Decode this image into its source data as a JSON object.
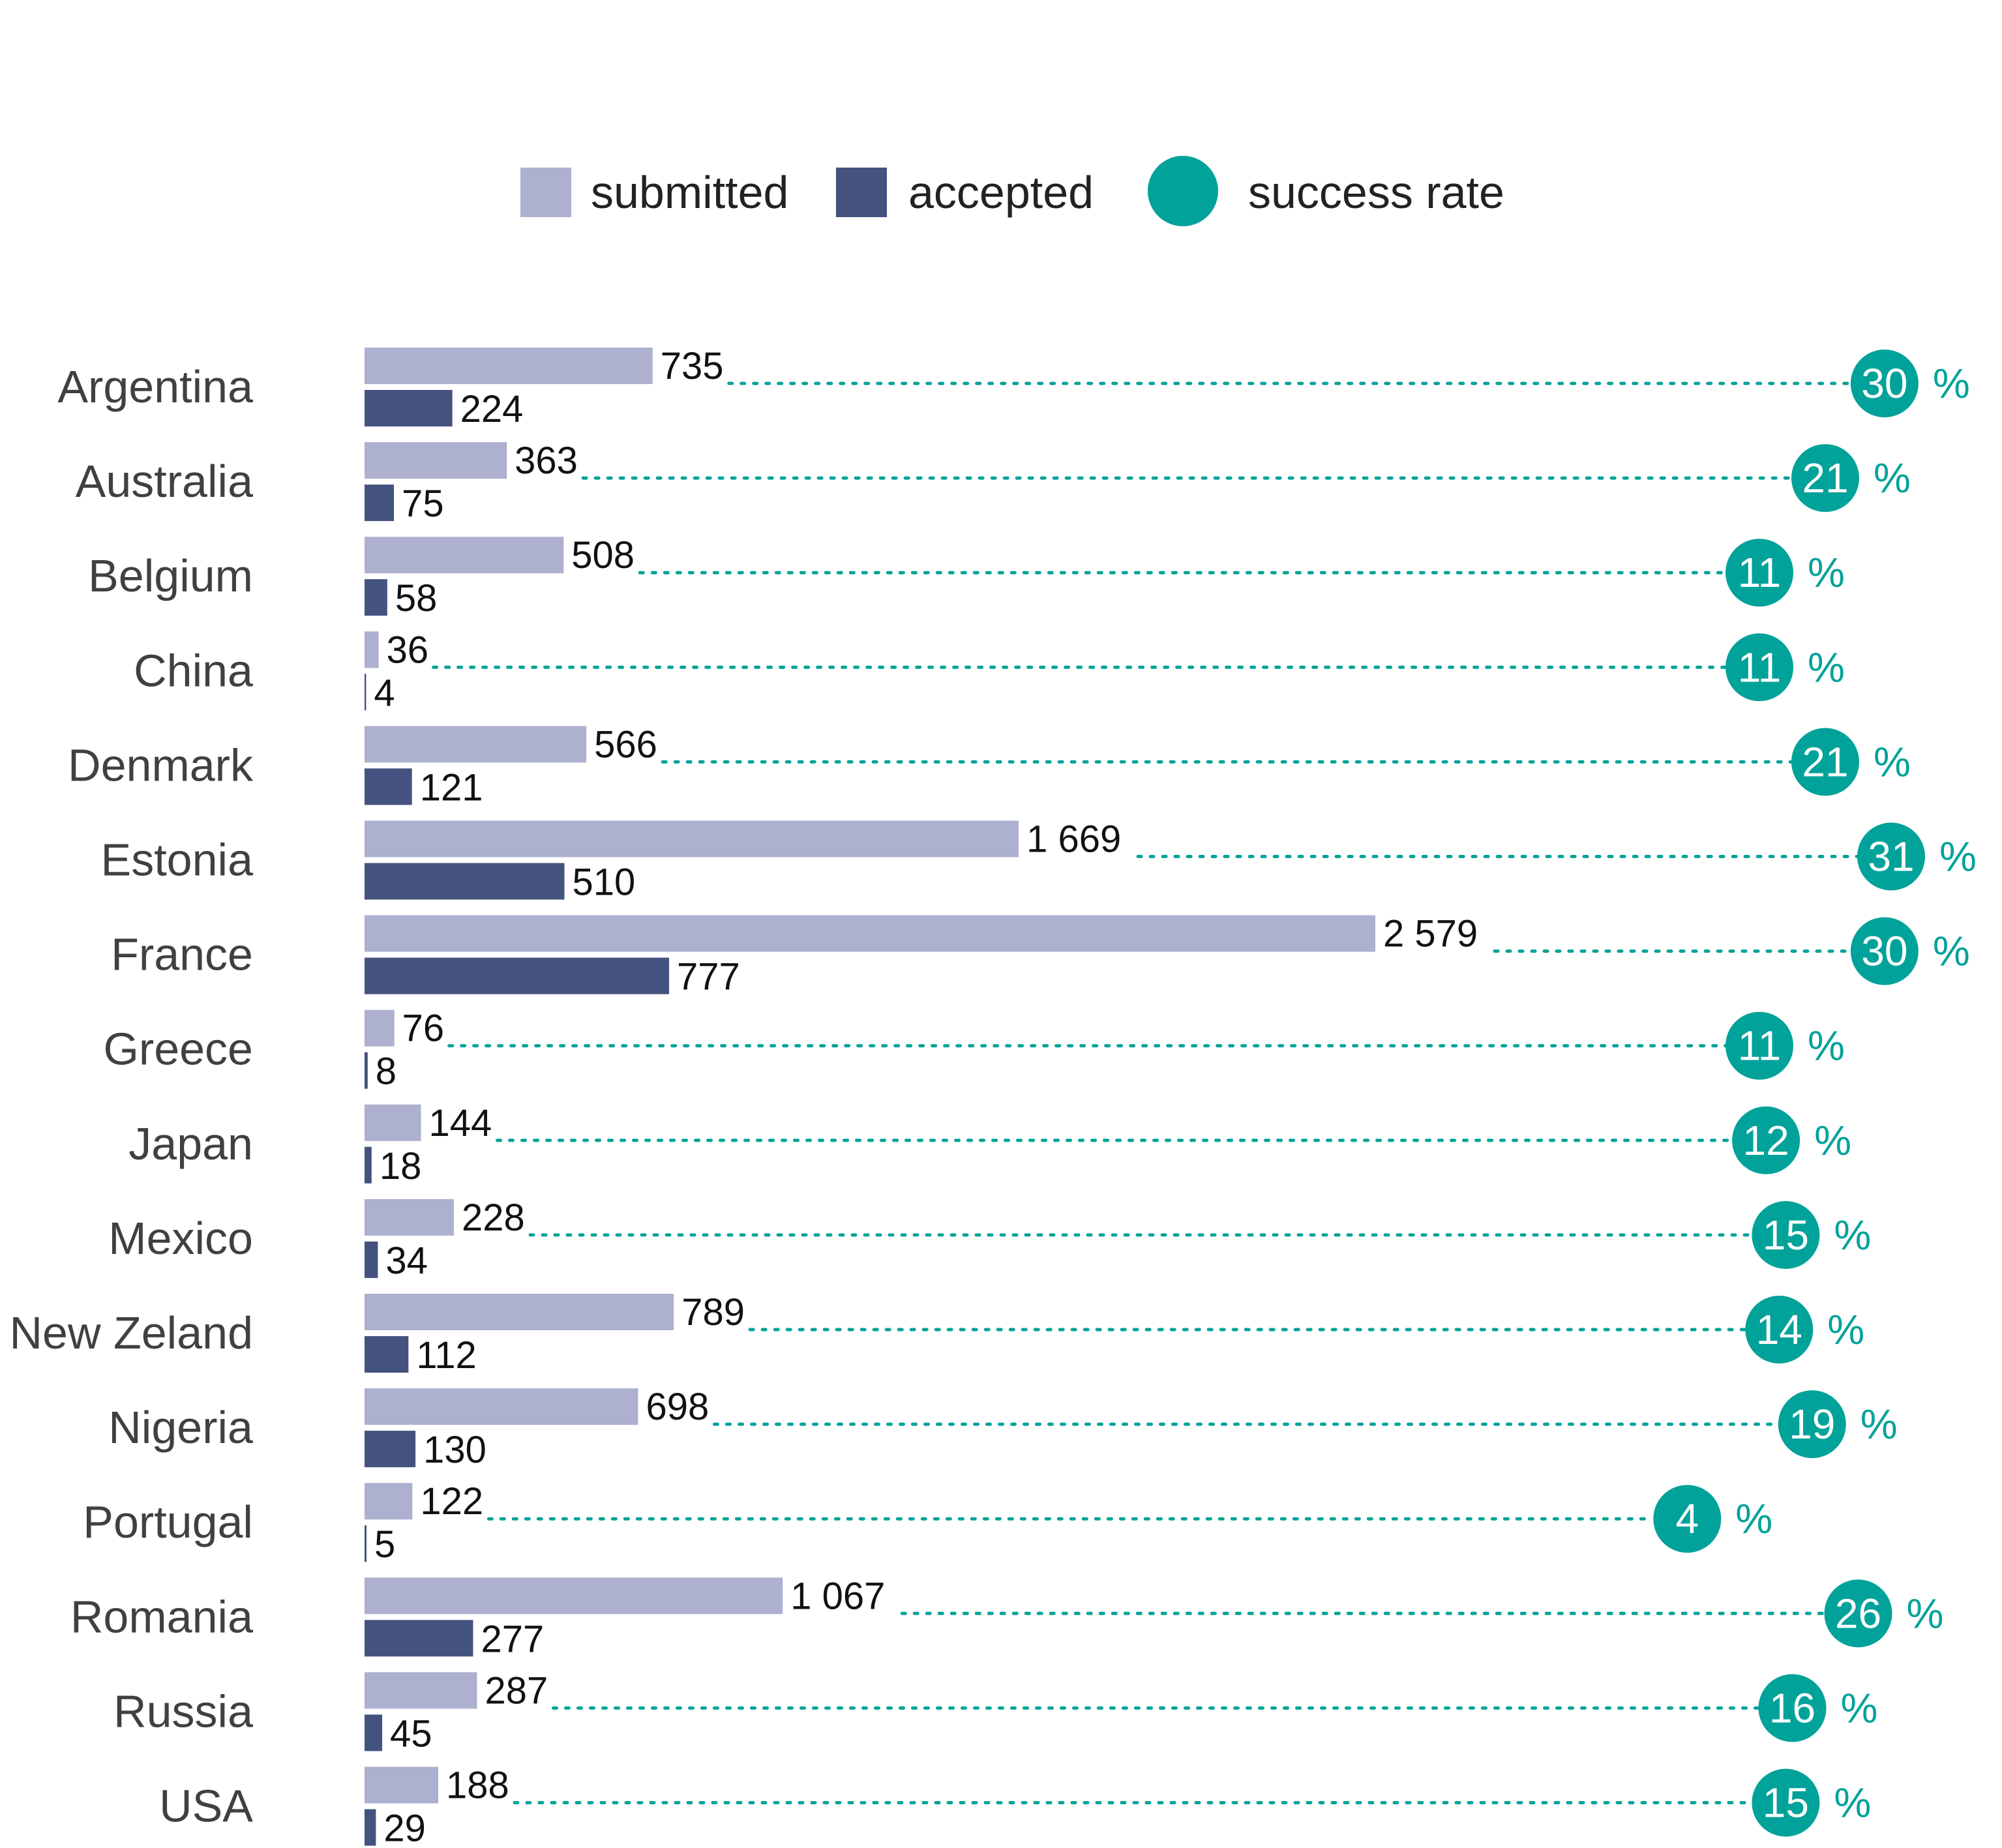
{
  "chart_data": {
    "type": "bar",
    "orientation": "horizontal",
    "categories": [
      "Argentina",
      "Australia",
      "Belgium",
      "China",
      "Denmark",
      "Estonia",
      "France",
      "Greece",
      "Japan",
      "Mexico",
      "New Zeland",
      "Nigeria",
      "Portugal",
      "Romania",
      "Russia",
      "USA"
    ],
    "series": [
      {
        "name": "submitted",
        "color": "#aeb0cf",
        "values": [
          735,
          363,
          508,
          36,
          566,
          1669,
          2579,
          76,
          144,
          228,
          789,
          698,
          122,
          1067,
          287,
          188
        ],
        "labels": [
          "735",
          "363",
          "508",
          "36",
          "566",
          "1 669",
          "2 579",
          "76",
          "144",
          "228",
          "789",
          "698",
          "122",
          "1 067",
          "287",
          "188"
        ]
      },
      {
        "name": "accepted",
        "color": "#44527f",
        "values": [
          224,
          75,
          58,
          4,
          121,
          510,
          777,
          8,
          18,
          34,
          112,
          130,
          5,
          277,
          45,
          29
        ],
        "labels": [
          "224",
          "75",
          "58",
          "4",
          "121",
          "510",
          "777",
          "8",
          "18",
          "34",
          "112",
          "130",
          "5",
          "277",
          "45",
          "29"
        ]
      },
      {
        "name": "success rate",
        "color": "#00a29a",
        "unit": "%",
        "values": [
          30,
          21,
          11,
          11,
          21,
          31,
          30,
          11,
          12,
          15,
          14,
          19,
          4,
          26,
          16,
          15
        ]
      }
    ],
    "legend": {
      "position": "top-center",
      "entries": [
        "submitted",
        "accepted",
        "success rate"
      ]
    },
    "grid": false,
    "xlabel": "",
    "ylabel": ""
  }
}
